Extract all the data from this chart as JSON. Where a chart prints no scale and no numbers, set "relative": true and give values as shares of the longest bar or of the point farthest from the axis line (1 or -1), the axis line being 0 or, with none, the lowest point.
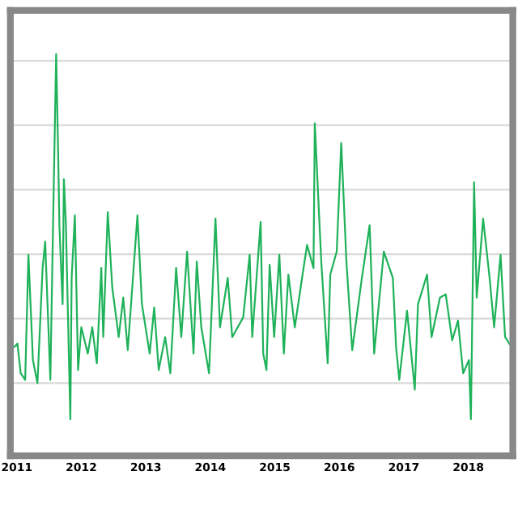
{
  "chart_data": {
    "type": "line",
    "relative": true,
    "grid": "y",
    "legend": false,
    "marker": "none",
    "line_style": "solid",
    "xlim": [
      2010.9,
      2018.69
    ],
    "xticks": [
      {
        "value": 2011,
        "label": "2011"
      },
      {
        "value": 2012,
        "label": "2012"
      },
      {
        "value": 2013,
        "label": "2013"
      },
      {
        "value": 2014,
        "label": "2014"
      },
      {
        "value": 2015,
        "label": "2015"
      },
      {
        "value": 2016,
        "label": "2016"
      },
      {
        "value": 2017,
        "label": "2017"
      },
      {
        "value": 2018,
        "label": "2018"
      }
    ],
    "x": [
      2010.96,
      2011.01,
      2011.06,
      2011.13,
      2011.18,
      2011.25,
      2011.32,
      2011.4,
      2011.44,
      2011.52,
      2011.56,
      2011.61,
      2011.64,
      2011.66,
      2011.71,
      2011.73,
      2011.76,
      2011.81,
      2011.83,
      2011.85,
      2011.9,
      2011.95,
      2012.0,
      2012.1,
      2012.17,
      2012.24,
      2012.31,
      2012.34,
      2012.41,
      2012.48,
      2012.58,
      2012.65,
      2012.72,
      2012.87,
      2012.94,
      2013.06,
      2013.13,
      2013.2,
      2013.3,
      2013.38,
      2013.47,
      2013.55,
      2013.64,
      2013.74,
      2013.79,
      2013.86,
      2013.98,
      2014.08,
      2014.15,
      2014.27,
      2014.34,
      2014.51,
      2014.61,
      2014.65,
      2014.78,
      2014.82,
      2014.87,
      2014.92,
      2014.99,
      2015.07,
      2015.14,
      2015.21,
      2015.31,
      2015.43,
      2015.5,
      2015.6,
      2015.62,
      2015.72,
      2015.82,
      2015.86,
      2015.96,
      2016.03,
      2016.11,
      2016.2,
      2016.35,
      2016.47,
      2016.54,
      2016.69,
      2016.83,
      2016.88,
      2016.93,
      2017.05,
      2017.17,
      2017.22,
      2017.36,
      2017.43,
      2017.56,
      2017.65,
      2017.75,
      2017.84,
      2017.92,
      2018.01,
      2018.04,
      2018.09,
      2018.13,
      2018.23,
      2018.33,
      2018.4,
      2018.5,
      2018.57,
      2018.67
    ],
    "series": [
      {
        "color": "#1fb25a",
        "values": [
          0.11,
          0.12,
          0.03,
          0.01,
          0.39,
          0.07,
          0,
          0.35,
          0.43,
          0.01,
          0.46,
          1,
          0.71,
          0.48,
          0.24,
          0.62,
          0.49,
          0.06,
          -0.11,
          0.32,
          0.51,
          0.04,
          0.17,
          0.09,
          0.17,
          0.06,
          0.35,
          0.14,
          0.52,
          0.29,
          0.14,
          0.26,
          0.1,
          0.51,
          0.24,
          0.09,
          0.23,
          0.04,
          0.14,
          0.03,
          0.35,
          0.14,
          0.4,
          0.09,
          0.37,
          0.17,
          0.03,
          0.5,
          0.17,
          0.32,
          0.14,
          0.2,
          0.39,
          0.14,
          0.49,
          0.09,
          0.04,
          0.36,
          0.14,
          0.39,
          0.09,
          0.33,
          0.17,
          0.33,
          0.42,
          0.35,
          0.79,
          0.37,
          0.06,
          0.33,
          0.4,
          0.73,
          0.37,
          0.1,
          0.32,
          0.48,
          0.09,
          0.4,
          0.32,
          0.11,
          0.01,
          0.22,
          -0.02,
          0.24,
          0.33,
          0.14,
          0.26,
          0.27,
          0.13,
          0.19,
          0.03,
          0.07,
          -0.11,
          0.61,
          0.26,
          0.5,
          0.32,
          0.17,
          0.39,
          0.14,
          0.11
        ]
      }
    ]
  }
}
